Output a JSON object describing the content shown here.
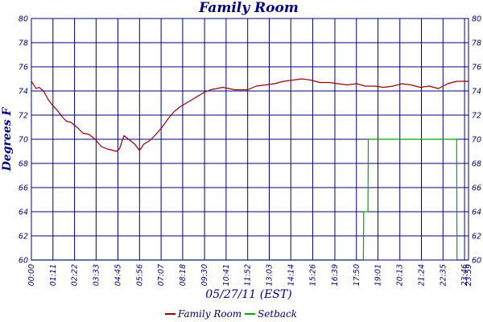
{
  "chart_data": {
    "type": "line",
    "title": "Family Room",
    "xlabel": "05/27/11 (EST)",
    "ylabel": "Degrees F",
    "ylim": [
      60,
      80
    ],
    "yticks": [
      60,
      62,
      64,
      66,
      68,
      70,
      72,
      74,
      76,
      78,
      80
    ],
    "xtick_labels": [
      "00:00",
      "01:11",
      "02:22",
      "03:33",
      "04:45",
      "05:56",
      "07:07",
      "08:18",
      "09:30",
      "10:41",
      "11:52",
      "13:03",
      "14:14",
      "15:26",
      "16:39",
      "17:50",
      "19:01",
      "20:13",
      "21:24",
      "22:35",
      "23:46",
      "23:59"
    ],
    "xtick_minutes": [
      0,
      71,
      142,
      213,
      285,
      356,
      427,
      498,
      570,
      641,
      712,
      783,
      854,
      926,
      999,
      1070,
      1141,
      1213,
      1284,
      1355,
      1426,
      1439
    ],
    "xlim_minutes": [
      0,
      1439
    ],
    "grid": true,
    "legend_position": "bottom",
    "series": [
      {
        "name": "Family Room",
        "color": "#990000",
        "x_minutes": [
          0,
          8,
          15,
          25,
          40,
          55,
          70,
          85,
          100,
          115,
          130,
          150,
          170,
          190,
          210,
          230,
          250,
          265,
          280,
          290,
          298,
          305,
          315,
          325,
          340,
          355,
          360,
          370,
          390,
          410,
          430,
          450,
          470,
          490,
          510,
          530,
          550,
          570,
          590,
          610,
          630,
          650,
          670,
          690,
          712,
          740,
          770,
          800,
          830,
          860,
          890,
          920,
          950,
          980,
          1010,
          1040,
          1070,
          1100,
          1130,
          1160,
          1190,
          1220,
          1250,
          1280,
          1310,
          1340,
          1370,
          1400,
          1439
        ],
        "values": [
          74.8,
          74.5,
          74.2,
          74.3,
          74.0,
          73.3,
          72.8,
          72.4,
          71.9,
          71.5,
          71.4,
          71.0,
          70.5,
          70.4,
          70.0,
          69.4,
          69.2,
          69.1,
          69.0,
          69.2,
          69.8,
          70.3,
          70.1,
          69.9,
          69.6,
          69.1,
          69.2,
          69.6,
          69.9,
          70.4,
          71.0,
          71.7,
          72.3,
          72.7,
          73.0,
          73.3,
          73.6,
          73.9,
          74.1,
          74.2,
          74.3,
          74.2,
          74.1,
          74.1,
          74.1,
          74.4,
          74.5,
          74.6,
          74.8,
          74.9,
          75.0,
          74.9,
          74.7,
          74.7,
          74.6,
          74.5,
          74.6,
          74.4,
          74.4,
          74.3,
          74.4,
          74.6,
          74.5,
          74.3,
          74.4,
          74.2,
          74.6,
          74.8,
          74.8
        ]
      },
      {
        "name": "Setback",
        "color": "#00aa00",
        "x_minutes": [
          0,
          1093,
          1094,
          1108,
          1109,
          1400,
          1401,
          1439
        ],
        "values": [
          60,
          60,
          64,
          64,
          70,
          70,
          60,
          60
        ]
      }
    ]
  }
}
